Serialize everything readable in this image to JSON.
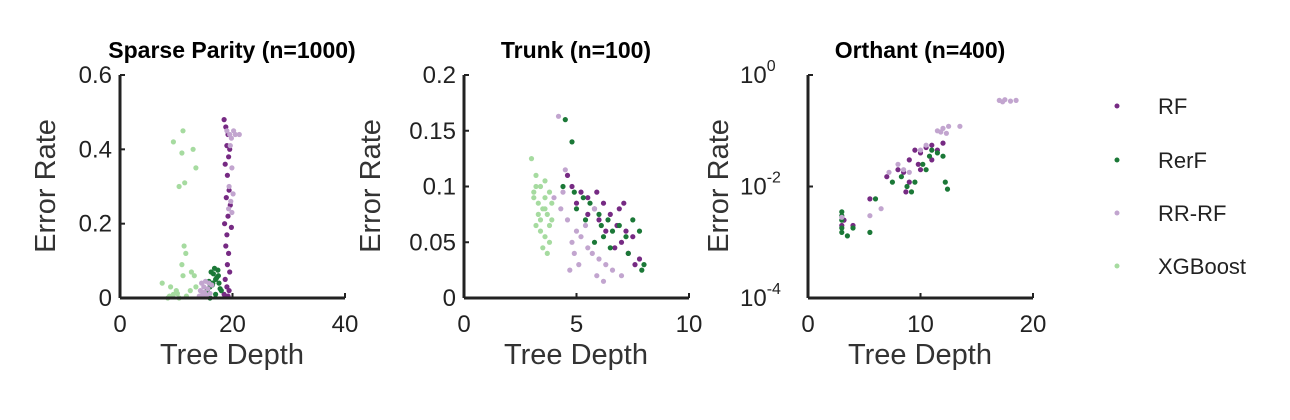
{
  "colors": {
    "RF": "#762a83",
    "RerF": "#1b7837",
    "RR-RF": "#c2a5cf",
    "XGBoost": "#a6dba0"
  },
  "legend": [
    "RF",
    "RerF",
    "RR-RF",
    "XGBoost"
  ],
  "chart_data": [
    {
      "type": "scatter",
      "title": "Sparse Parity (n=1000)",
      "xlabel": "Tree Depth",
      "ylabel": "Error Rate",
      "xlim": [
        0,
        40
      ],
      "ylim": [
        0,
        0.6
      ],
      "xticks": [
        0,
        20,
        40
      ],
      "yticks": [
        0,
        0.2,
        0.4,
        0.6
      ],
      "series": [
        {
          "name": "RF",
          "points": [
            [
              18.5,
              0.48
            ],
            [
              18.8,
              0.46
            ],
            [
              19.2,
              0.44
            ],
            [
              19.0,
              0.41
            ],
            [
              19.5,
              0.4
            ],
            [
              19.3,
              0.38
            ],
            [
              18.7,
              0.36
            ],
            [
              19.1,
              0.33
            ],
            [
              19.4,
              0.29
            ],
            [
              18.9,
              0.27
            ],
            [
              19.6,
              0.25
            ],
            [
              19.2,
              0.22
            ],
            [
              18.6,
              0.2
            ],
            [
              19.8,
              0.19
            ],
            [
              19.0,
              0.17
            ],
            [
              18.8,
              0.14
            ],
            [
              19.3,
              0.12
            ],
            [
              19.1,
              0.09
            ],
            [
              19.5,
              0.07
            ],
            [
              18.7,
              0.05
            ],
            [
              19.0,
              0.03
            ],
            [
              19.4,
              0.02
            ],
            [
              18.5,
              0.01
            ],
            [
              19.2,
              0.005
            ]
          ]
        },
        {
          "name": "RerF",
          "points": [
            [
              14.5,
              0.005
            ],
            [
              15.0,
              0.01
            ],
            [
              15.5,
              0.02
            ],
            [
              16.0,
              0.03
            ],
            [
              16.5,
              0.04
            ],
            [
              17.0,
              0.05
            ],
            [
              17.5,
              0.06
            ],
            [
              16.2,
              0.07
            ],
            [
              16.8,
              0.08
            ],
            [
              17.2,
              0.055
            ],
            [
              15.8,
              0.045
            ],
            [
              16.4,
              0.035
            ],
            [
              17.8,
              0.025
            ],
            [
              15.2,
              0.015
            ],
            [
              14.8,
              0.008
            ],
            [
              16.6,
              0.065
            ],
            [
              17.4,
              0.075
            ],
            [
              15.6,
              0.012
            ],
            [
              14.2,
              0.003
            ],
            [
              18.0,
              0.02
            ],
            [
              16.0,
              0.0
            ],
            [
              17.0,
              0.01
            ],
            [
              15.4,
              0.005
            ],
            [
              17.6,
              0.04
            ]
          ]
        },
        {
          "name": "RR-RF",
          "points": [
            [
              19.0,
              0.45
            ],
            [
              19.5,
              0.44
            ],
            [
              20.2,
              0.45
            ],
            [
              20.5,
              0.44
            ],
            [
              19.8,
              0.43
            ],
            [
              21.2,
              0.44
            ],
            [
              19.6,
              0.41
            ],
            [
              19.9,
              0.35
            ],
            [
              19.4,
              0.3
            ],
            [
              20.1,
              0.28
            ],
            [
              19.7,
              0.26
            ],
            [
              19.3,
              0.24
            ],
            [
              19.9,
              0.23
            ],
            [
              14.5,
              0.04
            ],
            [
              15.2,
              0.045
            ],
            [
              15.8,
              0.04
            ],
            [
              16.3,
              0.035
            ],
            [
              14.9,
              0.03
            ],
            [
              15.6,
              0.025
            ],
            [
              14.3,
              0.02
            ],
            [
              15.0,
              0.015
            ],
            [
              14.7,
              0.01
            ],
            [
              15.4,
              0.008
            ],
            [
              16.0,
              0.012
            ],
            [
              14.1,
              0.005
            ]
          ]
        },
        {
          "name": "XGBoost",
          "points": [
            [
              11.2,
              0.45
            ],
            [
              9.5,
              0.42
            ],
            [
              11.0,
              0.39
            ],
            [
              10.5,
              0.3
            ],
            [
              11.5,
              0.31
            ],
            [
              13.0,
              0.4
            ],
            [
              13.5,
              0.35
            ],
            [
              11.4,
              0.14
            ],
            [
              11.7,
              0.12
            ],
            [
              11.0,
              0.09
            ],
            [
              11.2,
              0.06
            ],
            [
              9.0,
              0.03
            ],
            [
              7.5,
              0.04
            ],
            [
              10.0,
              0.02
            ],
            [
              9.5,
              0.01
            ],
            [
              8.8,
              0.005
            ],
            [
              10.5,
              0.0
            ],
            [
              11.8,
              0.005
            ],
            [
              12.5,
              0.02
            ],
            [
              13.5,
              0.03
            ],
            [
              13.2,
              0.06
            ],
            [
              12.7,
              0.07
            ],
            [
              8.5,
              0.0
            ],
            [
              10.2,
              0.012
            ]
          ]
        }
      ]
    },
    {
      "type": "scatter",
      "title": "Trunk (n=100)",
      "xlabel": "Tree Depth",
      "ylabel": "Error Rate",
      "xlim": [
        0,
        10
      ],
      "ylim": [
        0,
        0.2
      ],
      "xticks": [
        0,
        5,
        10
      ],
      "yticks": [
        0,
        0.05,
        0.1,
        0.15,
        0.2
      ],
      "series": [
        {
          "name": "RF",
          "points": [
            [
              4.8,
              0.1
            ],
            [
              5.2,
              0.095
            ],
            [
              5.5,
              0.09
            ],
            [
              5.0,
              0.085
            ],
            [
              5.8,
              0.08
            ],
            [
              6.2,
              0.085
            ],
            [
              6.5,
              0.075
            ],
            [
              6.0,
              0.07
            ],
            [
              6.8,
              0.065
            ],
            [
              7.2,
              0.06
            ],
            [
              7.5,
              0.055
            ],
            [
              7.0,
              0.05
            ],
            [
              6.7,
              0.045
            ],
            [
              7.3,
              0.04
            ],
            [
              7.8,
              0.035
            ],
            [
              7.6,
              0.03
            ],
            [
              5.5,
              0.075
            ],
            [
              6.3,
              0.06
            ],
            [
              7.1,
              0.085
            ],
            [
              4.6,
              0.11
            ],
            [
              5.9,
              0.095
            ],
            [
              6.9,
              0.08
            ]
          ]
        },
        {
          "name": "RerF",
          "points": [
            [
              4.5,
              0.16
            ],
            [
              4.8,
              0.14
            ],
            [
              4.4,
              0.1
            ],
            [
              4.9,
              0.095
            ],
            [
              5.3,
              0.09
            ],
            [
              5.6,
              0.085
            ],
            [
              5.0,
              0.08
            ],
            [
              6.0,
              0.075
            ],
            [
              6.4,
              0.07
            ],
            [
              6.1,
              0.065
            ],
            [
              6.6,
              0.06
            ],
            [
              6.9,
              0.065
            ],
            [
              7.2,
              0.055
            ],
            [
              7.5,
              0.07
            ],
            [
              7.8,
              0.06
            ],
            [
              8.0,
              0.03
            ],
            [
              7.9,
              0.025
            ],
            [
              5.8,
              0.05
            ],
            [
              6.5,
              0.045
            ],
            [
              7.3,
              0.04
            ],
            [
              6.2,
              0.055
            ],
            [
              5.4,
              0.07
            ]
          ]
        },
        {
          "name": "RR-RF",
          "points": [
            [
              4.2,
              0.163
            ],
            [
              4.5,
              0.115
            ],
            [
              4.0,
              0.09
            ],
            [
              4.3,
              0.08
            ],
            [
              4.6,
              0.07
            ],
            [
              5.0,
              0.06
            ],
            [
              5.2,
              0.055
            ],
            [
              4.8,
              0.05
            ],
            [
              5.5,
              0.045
            ],
            [
              5.7,
              0.04
            ],
            [
              6.0,
              0.035
            ],
            [
              6.3,
              0.03
            ],
            [
              5.1,
              0.03
            ],
            [
              4.7,
              0.025
            ],
            [
              5.9,
              0.02
            ],
            [
              6.6,
              0.025
            ],
            [
              6.2,
              0.015
            ],
            [
              7.0,
              0.02
            ],
            [
              4.9,
              0.04
            ],
            [
              5.4,
              0.065
            ],
            [
              4.4,
              0.095
            ],
            [
              5.8,
              0.08
            ]
          ]
        },
        {
          "name": "XGBoost",
          "points": [
            [
              3.0,
              0.125
            ],
            [
              3.2,
              0.11
            ],
            [
              3.4,
              0.1
            ],
            [
              3.6,
              0.105
            ],
            [
              3.8,
              0.095
            ],
            [
              3.1,
              0.09
            ],
            [
              3.3,
              0.085
            ],
            [
              3.5,
              0.08
            ],
            [
              3.7,
              0.075
            ],
            [
              3.9,
              0.07
            ],
            [
              3.2,
              0.065
            ],
            [
              3.4,
              0.06
            ],
            [
              3.6,
              0.055
            ],
            [
              3.8,
              0.05
            ],
            [
              3.5,
              0.045
            ],
            [
              3.7,
              0.04
            ],
            [
              3.3,
              0.075
            ],
            [
              3.9,
              0.085
            ],
            [
              3.1,
              0.095
            ],
            [
              3.6,
              0.09
            ],
            [
              3.8,
              0.065
            ],
            [
              3.4,
              0.07
            ],
            [
              3.6,
              0.08
            ],
            [
              3.2,
              0.1
            ]
          ]
        }
      ]
    },
    {
      "type": "scatter",
      "title": "Orthant (n=400)",
      "xlabel": "Tree Depth",
      "ylabel": "Error Rate",
      "yscale": "log",
      "xlim": [
        0,
        20
      ],
      "ylim": [
        0.0001,
        1
      ],
      "xticks": [
        0,
        10,
        20
      ],
      "yticks": [
        {
          "value": 1,
          "base": "10",
          "exp": "0"
        },
        {
          "value": 0.01,
          "base": "10",
          "exp": "-2"
        },
        {
          "value": 0.0001,
          "base": "10",
          "exp": "-4"
        }
      ],
      "series": [
        {
          "name": "RF",
          "points": [
            [
              3.0,
              0.002
            ],
            [
              3.2,
              0.0025
            ],
            [
              4.0,
              0.002
            ],
            [
              5.5,
              0.006
            ],
            [
              7.0,
              0.015
            ],
            [
              8.0,
              0.02
            ],
            [
              8.5,
              0.018
            ],
            [
              9.0,
              0.03
            ],
            [
              9.5,
              0.045
            ],
            [
              10.0,
              0.04
            ],
            [
              10.5,
              0.05
            ],
            [
              11.0,
              0.055
            ],
            [
              11.5,
              0.045
            ],
            [
              12.0,
              0.06
            ],
            [
              9.0,
              0.012
            ],
            [
              10.0,
              0.02
            ],
            [
              11.0,
              0.03
            ],
            [
              8.7,
              0.008
            ],
            [
              9.8,
              0.025
            ]
          ]
        },
        {
          "name": "RerF",
          "points": [
            [
              3.0,
              0.0035
            ],
            [
              3.0,
              0.003
            ],
            [
              3.0,
              0.0025
            ],
            [
              3.0,
              0.0018
            ],
            [
              3.0,
              0.0015
            ],
            [
              3.5,
              0.0013
            ],
            [
              4.0,
              0.0018
            ],
            [
              5.5,
              0.0015
            ],
            [
              6.0,
              0.006
            ],
            [
              7.5,
              0.012
            ],
            [
              8.3,
              0.015
            ],
            [
              8.8,
              0.01
            ],
            [
              9.2,
              0.008
            ],
            [
              10.2,
              0.025
            ],
            [
              10.8,
              0.035
            ],
            [
              11.0,
              0.045
            ],
            [
              11.5,
              0.04
            ],
            [
              12.0,
              0.035
            ],
            [
              12.2,
              0.012
            ],
            [
              12.4,
              0.009
            ],
            [
              10.5,
              0.02
            ],
            [
              9.5,
              0.012
            ]
          ]
        },
        {
          "name": "RR-RF",
          "points": [
            [
              3.0,
              0.0028
            ],
            [
              5.5,
              0.003
            ],
            [
              6.5,
              0.004
            ],
            [
              7.2,
              0.018
            ],
            [
              8.0,
              0.025
            ],
            [
              8.5,
              0.02
            ],
            [
              9.0,
              0.018
            ],
            [
              10.0,
              0.045
            ],
            [
              10.5,
              0.055
            ],
            [
              11.5,
              0.1
            ],
            [
              12.0,
              0.11
            ],
            [
              12.5,
              0.12
            ],
            [
              13.5,
              0.12
            ],
            [
              17.0,
              0.35
            ],
            [
              17.5,
              0.36
            ],
            [
              18.0,
              0.34
            ],
            [
              18.5,
              0.35
            ],
            [
              11.8,
              0.095
            ],
            [
              12.3,
              0.09
            ],
            [
              17.3,
              0.33
            ]
          ]
        }
      ]
    }
  ]
}
